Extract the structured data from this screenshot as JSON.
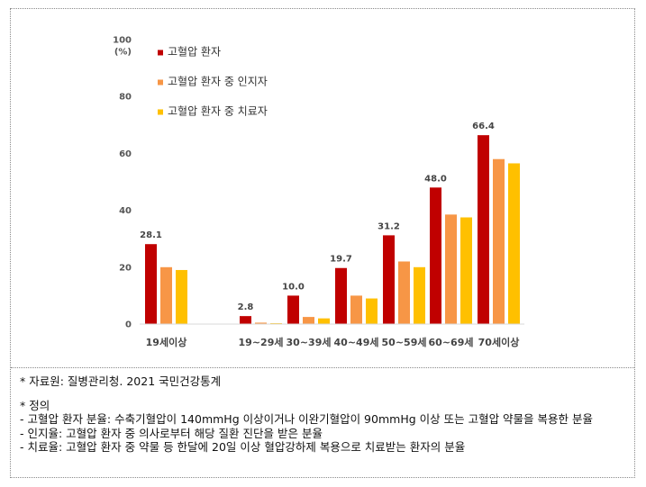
{
  "chart_data": {
    "type": "bar",
    "categories": [
      "19세이상",
      "19~29세",
      "30~39세",
      "40~49세",
      "50~59세",
      "60~69세",
      "70세이상"
    ],
    "series": [
      {
        "name": "고혈압 환자",
        "color": "#c00000",
        "values": [
          28.1,
          2.8,
          10.0,
          19.7,
          31.2,
          48.0,
          66.4
        ]
      },
      {
        "name": "고혈압 환자 중 인지자",
        "color": "#f79646",
        "values": [
          20.0,
          0.5,
          2.5,
          10.0,
          22.0,
          38.5,
          58.0
        ]
      },
      {
        "name": "고혈압 환자 중 치료자",
        "color": "#ffc000",
        "values": [
          19.0,
          0.3,
          2.0,
          9.0,
          20.0,
          37.5,
          56.5
        ]
      }
    ],
    "data_labels": [
      "28.1",
      "2.8",
      "10.0",
      "19.7",
      "31.2",
      "48.0",
      "66.4"
    ],
    "y_unit_top": "100",
    "y_unit": "(%)",
    "yticks": [
      0,
      20,
      40,
      60,
      80
    ],
    "ylim": [
      0,
      100
    ],
    "legend_position": "top-left",
    "grid": false
  },
  "notes": {
    "source": "* 자료원: 질병관리청. 2021 국민건강통계",
    "definition_title": "* 정의",
    "def1": " - 고혈압 환자 분율: 수축기혈압이 140mmHg 이상이거나 이완기혈압이 90mmHg 이상 또는 고혈압 약물을 복용한 분율",
    "def2": " - 인지율: 고혈압 환자 중 의사로부터 해당 질환 진단을 받은 분율",
    "def3": " - 치료율: 고혈압 환자 중 약물 등 한달에 20일 이상 혈압강하제 복용으로 치료받는 환자의 분율"
  }
}
